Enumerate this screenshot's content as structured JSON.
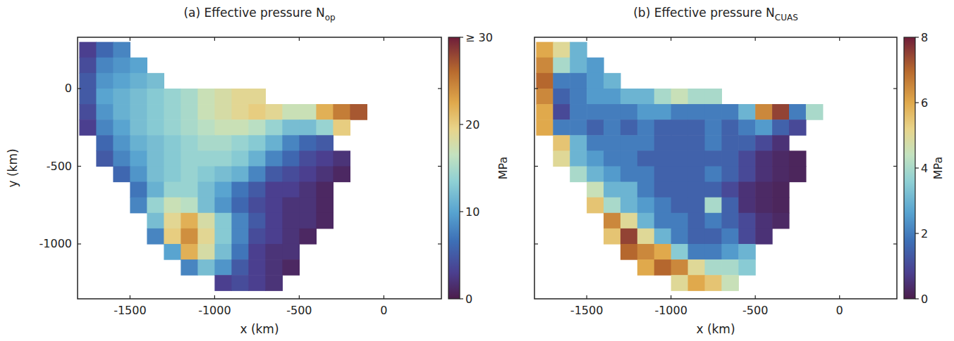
{
  "chart_data": [
    {
      "type": "heatmap",
      "title": "(a) Effective pressure N",
      "title_subscript": "op",
      "xlabel": "x (km)",
      "ylabel": "y (km)",
      "xlim": [
        -1810,
        340
      ],
      "ylim": [
        -1353,
        330
      ],
      "xticks": [
        -1500,
        -1000,
        -500,
        0
      ],
      "yticks": [
        0,
        -500,
        -1000
      ],
      "x": [
        -1750,
        -1650,
        -1550,
        -1450,
        -1350,
        -1250,
        -1150,
        -1050,
        -950,
        -850,
        -750,
        -650,
        -550,
        -450,
        -350,
        -250,
        -150,
        -50,
        50,
        150,
        250
      ],
      "y": [
        250,
        150,
        50,
        -50,
        -150,
        -250,
        -350,
        -450,
        -550,
        -650,
        -750,
        -850,
        -950,
        -1050,
        -1150,
        -1250
      ],
      "cells": [
        [
          3,
          6,
          8,
          null,
          null,
          null,
          null,
          null,
          null,
          null,
          null,
          null,
          null,
          null,
          null,
          null,
          null,
          null,
          null,
          null,
          null
        ],
        [
          4,
          8,
          9,
          10,
          null,
          null,
          null,
          null,
          null,
          null,
          null,
          null,
          null,
          null,
          null,
          null,
          null,
          null,
          null,
          null,
          null
        ],
        [
          5,
          9,
          10,
          11,
          12,
          null,
          null,
          null,
          null,
          null,
          null,
          null,
          null,
          null,
          null,
          null,
          null,
          null,
          null,
          null,
          null
        ],
        [
          5,
          10,
          11,
          12,
          13,
          14,
          15,
          17,
          18,
          19,
          19,
          null,
          null,
          null,
          null,
          null,
          null,
          null,
          null,
          null,
          null
        ],
        [
          4,
          9,
          11,
          12,
          13,
          14,
          15,
          17,
          18,
          19,
          20,
          19,
          17,
          17,
          22,
          25,
          27,
          null,
          null,
          null,
          null
        ],
        [
          3,
          8,
          10,
          12,
          13,
          14,
          15,
          16,
          17,
          17,
          16,
          14,
          12,
          12,
          14,
          20,
          null,
          null,
          null,
          null,
          null
        ],
        [
          null,
          6,
          9,
          11,
          12,
          13,
          14,
          15,
          15,
          14,
          13,
          11,
          8,
          6,
          5,
          null,
          null,
          null,
          null,
          null,
          null
        ],
        [
          null,
          5,
          8,
          10,
          12,
          13,
          14,
          14,
          14,
          13,
          11,
          8,
          6,
          4,
          3,
          2,
          null,
          null,
          null,
          null,
          null
        ],
        [
          null,
          null,
          6,
          9,
          12,
          13,
          14,
          13,
          12,
          11,
          8,
          5,
          4,
          3,
          2,
          1,
          null,
          null,
          null,
          null,
          null
        ],
        [
          null,
          null,
          null,
          7,
          11,
          14,
          14,
          12,
          10,
          7,
          5,
          3,
          3,
          2,
          1,
          null,
          null,
          null,
          null,
          null,
          null
        ],
        [
          null,
          null,
          null,
          8,
          14,
          17,
          16,
          12,
          9,
          6,
          4,
          3,
          2,
          2,
          1,
          null,
          null,
          null,
          null,
          null,
          null
        ],
        [
          null,
          null,
          null,
          null,
          12,
          19,
          22,
          18,
          13,
          8,
          5,
          3,
          2,
          2,
          1,
          null,
          null,
          null,
          null,
          null,
          null
        ],
        [
          null,
          null,
          null,
          null,
          8,
          20,
          24,
          19,
          13,
          8,
          4,
          3,
          2,
          1,
          null,
          null,
          null,
          null,
          null,
          null,
          null
        ],
        [
          null,
          null,
          null,
          null,
          null,
          10,
          22,
          18,
          12,
          7,
          3,
          2,
          2,
          null,
          null,
          null,
          null,
          null,
          null,
          null,
          null
        ],
        [
          null,
          null,
          null,
          null,
          null,
          null,
          8,
          12,
          9,
          5,
          3,
          2,
          1,
          null,
          null,
          null,
          null,
          null,
          null,
          null,
          null
        ],
        [
          null,
          null,
          null,
          null,
          null,
          null,
          null,
          null,
          3,
          4,
          3,
          2,
          null,
          null,
          null,
          null,
          null,
          null,
          null,
          null,
          null
        ]
      ],
      "colorbar": {
        "range": [
          0,
          30
        ],
        "ticks": [
          0,
          10,
          20,
          {
            "value": 30,
            "label": "≥ 30"
          }
        ],
        "label": "MPa"
      }
    },
    {
      "type": "heatmap",
      "title": "(b) Effective pressure N",
      "title_subscript": "CUAS",
      "xlabel": "x (km)",
      "tick_labels": "x",
      "xlim": [
        -1810,
        340
      ],
      "ylim": [
        -1353,
        330
      ],
      "xticks": [
        -1500,
        -1000,
        -500,
        0
      ],
      "yticks": [
        0,
        -500,
        -1000
      ],
      "x": [
        -1750,
        -1650,
        -1550,
        -1450,
        -1350,
        -1250,
        -1150,
        -1050,
        -950,
        -850,
        -750,
        -650,
        -550,
        -450,
        -350,
        -250,
        -150,
        -50,
        50,
        150,
        250
      ],
      "y": [
        250,
        150,
        50,
        -50,
        -150,
        -250,
        -350,
        -450,
        -550,
        -650,
        -750,
        -850,
        -950,
        -1050,
        -1150,
        -1250
      ],
      "cells": [
        [
          6,
          5,
          3,
          null,
          null,
          null,
          null,
          null,
          null,
          null,
          null,
          null,
          null,
          null,
          null,
          null,
          null,
          null,
          null,
          null,
          null
        ],
        [
          6.5,
          4,
          3,
          2.5,
          null,
          null,
          null,
          null,
          null,
          null,
          null,
          null,
          null,
          null,
          null,
          null,
          null,
          null,
          null,
          null,
          null
        ],
        [
          7,
          2,
          2,
          2.5,
          3,
          null,
          null,
          null,
          null,
          null,
          null,
          null,
          null,
          null,
          null,
          null,
          null,
          null,
          null,
          null,
          null
        ],
        [
          6.5,
          1.5,
          2,
          2.5,
          2.5,
          3,
          3,
          4,
          4.5,
          4,
          4,
          null,
          null,
          null,
          null,
          null,
          null,
          null,
          null,
          null,
          null
        ],
        [
          6,
          1,
          2,
          2,
          2,
          2,
          2.5,
          2.5,
          2,
          2,
          2,
          2,
          3,
          6.5,
          7.5,
          2,
          4,
          null,
          null,
          null,
          null
        ],
        [
          6,
          2,
          2,
          1.5,
          2,
          1.5,
          2,
          1.5,
          1.5,
          1.5,
          2,
          1.5,
          2,
          2.5,
          1.5,
          1,
          null,
          null,
          null,
          null,
          null
        ],
        [
          null,
          5.5,
          3,
          2,
          2,
          2,
          2,
          1.5,
          1.5,
          1.5,
          2,
          1.5,
          1.5,
          1,
          0.5,
          null,
          null,
          null,
          null,
          null,
          null
        ],
        [
          null,
          5,
          3,
          2.5,
          2,
          2,
          1.5,
          1.5,
          1.5,
          1.5,
          1.5,
          1.5,
          1,
          0.5,
          0.3,
          0.2,
          null,
          null,
          null,
          null,
          null
        ],
        [
          null,
          null,
          4,
          3,
          2.5,
          2,
          2,
          1.5,
          1.5,
          1.5,
          2,
          1.5,
          1,
          0.5,
          0.3,
          0.2,
          null,
          null,
          null,
          null,
          null
        ],
        [
          null,
          null,
          null,
          4.5,
          3,
          3,
          2,
          1.5,
          1.5,
          1.5,
          1.5,
          1,
          0.5,
          0.3,
          0.2,
          null,
          null,
          null,
          null,
          null,
          null
        ],
        [
          null,
          null,
          null,
          5.5,
          4,
          3,
          2.5,
          2,
          1.5,
          1.5,
          4,
          1.5,
          0.5,
          0.3,
          0.2,
          null,
          null,
          null,
          null,
          null,
          null
        ],
        [
          null,
          null,
          null,
          null,
          6.5,
          5,
          3,
          2,
          2,
          1.5,
          2,
          1.5,
          1,
          0.5,
          0.3,
          null,
          null,
          null,
          null,
          null,
          null
        ],
        [
          null,
          null,
          null,
          null,
          5.5,
          7.5,
          5,
          3,
          2,
          1.5,
          1.5,
          2,
          1,
          0.5,
          null,
          null,
          null,
          null,
          null,
          null,
          null
        ],
        [
          null,
          null,
          null,
          null,
          null,
          7,
          6.5,
          6,
          3.5,
          2,
          2,
          2.5,
          3,
          null,
          null,
          null,
          null,
          null,
          null,
          null,
          null
        ],
        [
          null,
          null,
          null,
          null,
          null,
          null,
          6,
          7,
          6.5,
          5,
          4,
          4,
          3.5,
          null,
          null,
          null,
          null,
          null,
          null,
          null,
          null
        ],
        [
          null,
          null,
          null,
          null,
          null,
          null,
          null,
          null,
          5,
          6,
          5.5,
          4.5,
          null,
          null,
          null,
          null,
          null,
          null,
          null,
          null,
          null
        ]
      ],
      "colorbar": {
        "range": [
          0,
          8
        ],
        "ticks": [
          0,
          2,
          4,
          6,
          8
        ],
        "label": "MPa"
      }
    }
  ]
}
